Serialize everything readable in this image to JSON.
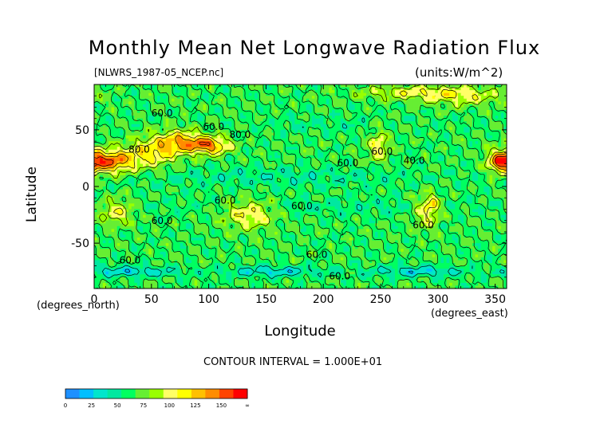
{
  "chart_data": {
    "type": "heatmap",
    "title": "Monthly Mean Net Longwave Radiation Flux",
    "subtitle": "[NLWRS_1987-05_NCEP.nc]",
    "units_label": "(units:W/m^2)",
    "xlabel": "Longitude",
    "ylabel": "Latitude",
    "x_units": "(degrees_east)",
    "y_units": "(degrees_north)",
    "xlim": [
      0,
      360
    ],
    "ylim": [
      -90,
      90
    ],
    "x_ticks": [
      "0",
      "50",
      "100",
      "150",
      "200",
      "250",
      "300",
      "350"
    ],
    "x_tick_values": [
      0,
      50,
      100,
      150,
      200,
      250,
      300,
      350
    ],
    "y_ticks": [
      "50",
      "0",
      "-50"
    ],
    "y_tick_values": [
      50,
      0,
      -50
    ],
    "contour_interval": "CONTOUR INTERVAL = 1.000E+01",
    "contour_labels": [
      "60.0",
      "80.0",
      "60.0",
      "80.0",
      "60.0",
      "60.0",
      "60.0",
      "60.0",
      "60.0",
      "60.0",
      "40.0",
      "60.0",
      "60.0",
      "60.0"
    ],
    "colorbar": {
      "bins": [
        0,
        12.5,
        25,
        37.5,
        50,
        62.5,
        75,
        87.5,
        100,
        112.5,
        125,
        137.5,
        150
      ],
      "labels": [
        "0",
        "25",
        "50",
        "75",
        "100",
        "125",
        "150",
        "∞"
      ],
      "colors": [
        "#1e90ff",
        "#00bfff",
        "#00e5cc",
        "#00e8a0",
        "#00ff60",
        "#66ee33",
        "#99ff00",
        "#ffff66",
        "#ffff00",
        "#ffc000",
        "#ff8c00",
        "#ff4400",
        "#ff0000"
      ]
    }
  }
}
